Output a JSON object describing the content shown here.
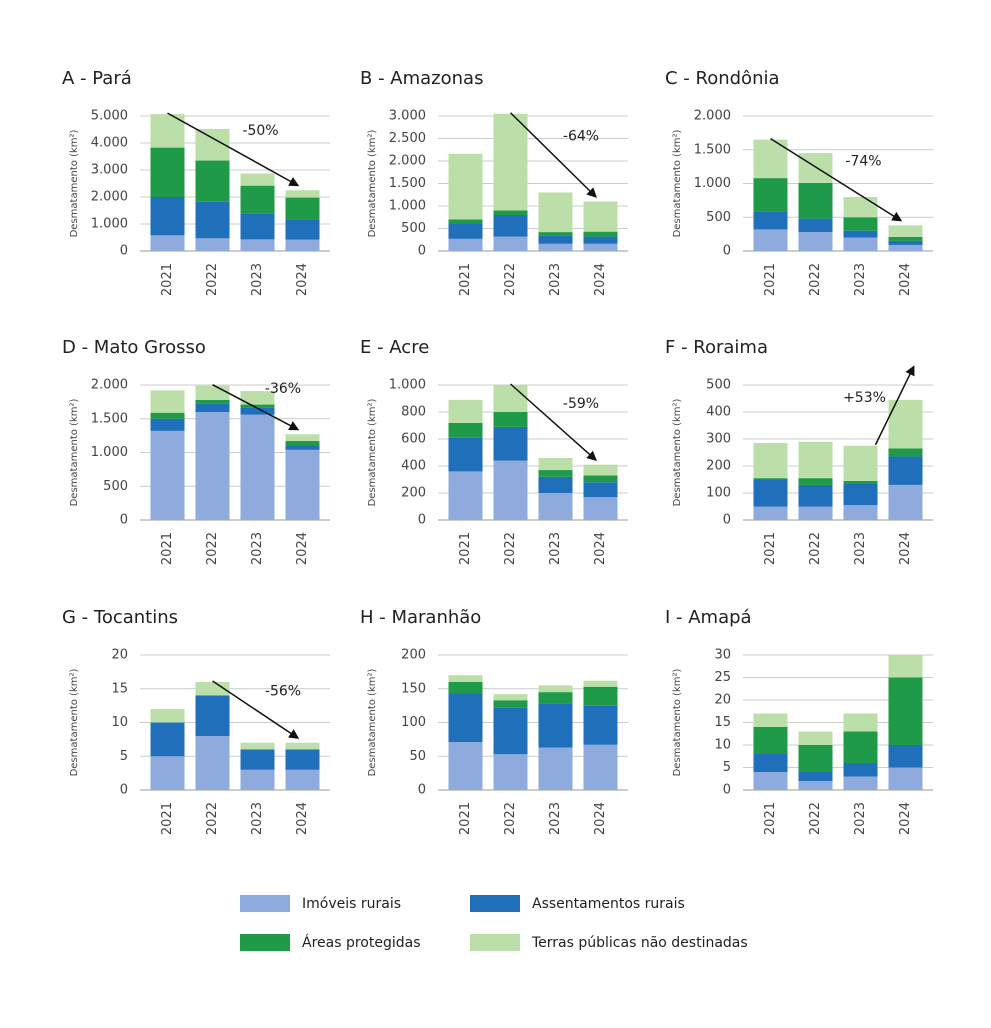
{
  "legend": [
    {
      "name": "Imóveis rurais",
      "color": "#8faadc"
    },
    {
      "name": "Assentamentos rurais",
      "color": "#1f6fba"
    },
    {
      "name": "Áreas protegidas",
      "color": "#1f9a48"
    },
    {
      "name": "Terras públicas não destinadas",
      "color": "#bcdfaa"
    }
  ],
  "chart_data": [
    {
      "type": "bar",
      "stacked": true,
      "grid": true,
      "title": "A - Pará",
      "ylabel": "Desmatamento (km²)",
      "categories": [
        "2021",
        "2022",
        "2023",
        "2024"
      ],
      "series": [
        {
          "values": [
            580,
            470,
            430,
            420
          ]
        },
        {
          "values": [
            1420,
            1350,
            970,
            750
          ]
        },
        {
          "values": [
            1830,
            1530,
            1020,
            810
          ]
        },
        {
          "values": [
            1240,
            1170,
            450,
            270
          ]
        }
      ],
      "ylim": [
        0,
        5000
      ],
      "yticks": [
        0,
        {
          "value": 1000,
          "label": "1.000"
        },
        {
          "value": 2000,
          "label": "2.000"
        },
        {
          "value": 3000,
          "label": "3.000"
        },
        {
          "value": 4000,
          "label": "4.000"
        },
        {
          "value": 5000,
          "label": "5.000"
        }
      ],
      "annotation": "-50%"
    },
    {
      "type": "bar",
      "stacked": true,
      "grid": true,
      "title": "B - Amazonas",
      "ylabel": "Desmatamento (km²)",
      "categories": [
        "2021",
        "2022",
        "2023",
        "2024"
      ],
      "series": [
        {
          "values": [
            270,
            320,
            160,
            160
          ]
        },
        {
          "values": [
            330,
            480,
            190,
            160
          ]
        },
        {
          "values": [
            100,
            100,
            70,
            110
          ]
        },
        {
          "values": [
            1460,
            2150,
            880,
            670
          ]
        }
      ],
      "ylim": [
        0,
        3000
      ],
      "yticks": [
        0,
        500,
        {
          "value": 1000,
          "label": "1.000"
        },
        {
          "value": 1500,
          "label": "1.500"
        },
        {
          "value": 2000,
          "label": "2.000"
        },
        {
          "value": 2500,
          "label": "2.500"
        },
        {
          "value": 3000,
          "label": "3.000"
        }
      ],
      "annotation": "-64%"
    },
    {
      "type": "bar",
      "stacked": true,
      "grid": true,
      "title": "C - Rondônia",
      "ylabel": "Desmatamento (km²)",
      "categories": [
        "2021",
        "2022",
        "2023",
        "2024"
      ],
      "series": [
        {
          "values": [
            320,
            280,
            200,
            90
          ]
        },
        {
          "values": [
            270,
            200,
            100,
            60
          ]
        },
        {
          "values": [
            490,
            530,
            200,
            60
          ]
        },
        {
          "values": [
            570,
            440,
            300,
            170
          ]
        }
      ],
      "ylim": [
        0,
        2000
      ],
      "yticks": [
        0,
        500,
        {
          "value": 1000,
          "label": "1.000"
        },
        {
          "value": 1500,
          "label": "1.500"
        },
        {
          "value": 2000,
          "label": "2.000"
        }
      ],
      "annotation": "-74%"
    },
    {
      "type": "bar",
      "stacked": true,
      "grid": true,
      "title": "D - Mato Grosso",
      "ylabel": "Desmatamento (km²)",
      "categories": [
        "2021",
        "2022",
        "2023",
        "2024"
      ],
      "series": [
        {
          "values": [
            1320,
            1600,
            1560,
            1040
          ]
        },
        {
          "values": [
            180,
            130,
            110,
            70
          ]
        },
        {
          "values": [
            90,
            50,
            40,
            60
          ]
        },
        {
          "values": [
            330,
            210,
            200,
            100
          ]
        }
      ],
      "ylim": [
        0,
        2000
      ],
      "yticks": [
        0,
        500,
        {
          "value": 1000,
          "label": "1.000"
        },
        {
          "value": 1500,
          "label": "1.500"
        },
        {
          "value": 2000,
          "label": "2.000"
        }
      ],
      "annotation": "-36%"
    },
    {
      "type": "bar",
      "stacked": true,
      "grid": true,
      "title": "E - Acre",
      "ylabel": "Desmatamento (km²)",
      "categories": [
        "2021",
        "2022",
        "2023",
        "2024"
      ],
      "series": [
        {
          "values": [
            360,
            440,
            200,
            170
          ]
        },
        {
          "values": [
            250,
            250,
            120,
            110
          ]
        },
        {
          "values": [
            110,
            110,
            50,
            50
          ]
        },
        {
          "values": [
            170,
            200,
            90,
            80
          ]
        }
      ],
      "ylim": [
        0,
        1000
      ],
      "yticks": [
        0,
        200,
        400,
        600,
        800,
        {
          "value": 1000,
          "label": "1.000"
        }
      ],
      "annotation": "-59%"
    },
    {
      "type": "bar",
      "stacked": true,
      "grid": true,
      "title": "F - Roraima",
      "ylabel": "Desmatamento (km²)",
      "categories": [
        "2021",
        "2022",
        "2023",
        "2024"
      ],
      "series": [
        {
          "values": [
            50,
            50,
            55,
            130
          ]
        },
        {
          "values": [
            100,
            80,
            80,
            105
          ]
        },
        {
          "values": [
            5,
            25,
            10,
            30
          ]
        },
        {
          "values": [
            130,
            135,
            130,
            180
          ]
        }
      ],
      "ylim": [
        0,
        500
      ],
      "yticks": [
        0,
        100,
        200,
        300,
        400,
        500
      ],
      "annotation": "+53%"
    },
    {
      "type": "bar",
      "stacked": true,
      "grid": true,
      "title": "G - Tocantins",
      "ylabel": "Desmatamento (km²)",
      "categories": [
        "2021",
        "2022",
        "2023",
        "2024"
      ],
      "series": [
        {
          "values": [
            5,
            8,
            3,
            3
          ]
        },
        {
          "values": [
            5,
            6,
            3,
            3
          ]
        },
        {
          "values": [
            0,
            0,
            0,
            0
          ]
        },
        {
          "values": [
            2,
            2,
            1,
            1
          ]
        }
      ],
      "ylim": [
        0,
        20
      ],
      "yticks": [
        0,
        5,
        10,
        15,
        20
      ],
      "annotation": "-56%"
    },
    {
      "type": "bar",
      "stacked": true,
      "grid": true,
      "title": "H - Maranhão",
      "ylabel": "Desmatamento (km²)",
      "categories": [
        "2021",
        "2022",
        "2023",
        "2024"
      ],
      "series": [
        {
          "values": [
            71,
            53,
            63,
            67
          ]
        },
        {
          "values": [
            72,
            69,
            65,
            58
          ]
        },
        {
          "values": [
            17,
            11,
            17,
            28
          ]
        },
        {
          "values": [
            10,
            9,
            10,
            9
          ]
        }
      ],
      "ylim": [
        0,
        200
      ],
      "yticks": [
        0,
        50,
        100,
        150,
        200
      ]
    },
    {
      "type": "bar",
      "stacked": true,
      "grid": true,
      "title": "I - Amapá",
      "ylabel": "Desmatamento (km²)",
      "categories": [
        "2021",
        "2022",
        "2023",
        "2024"
      ],
      "series": [
        {
          "values": [
            4,
            2,
            3,
            5
          ]
        },
        {
          "values": [
            4,
            2,
            3,
            5
          ]
        },
        {
          "values": [
            6,
            6,
            7,
            15
          ]
        },
        {
          "values": [
            3,
            3,
            4,
            5
          ]
        }
      ],
      "ylim": [
        0,
        30
      ],
      "yticks": [
        0,
        5,
        10,
        15,
        20,
        25,
        30
      ]
    }
  ]
}
